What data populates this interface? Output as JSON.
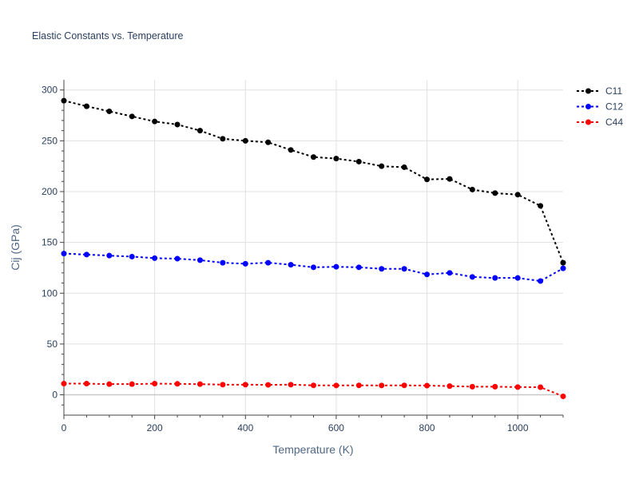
{
  "chart_data": {
    "type": "line",
    "title": "Elastic Constants vs. Temperature",
    "xlabel": "Temperature (K)",
    "ylabel": "Cij (GPa)",
    "xlim": [
      0,
      1100
    ],
    "ylim": [
      -20,
      310
    ],
    "x_ticks": [
      0,
      200,
      400,
      600,
      800,
      1000
    ],
    "y_ticks": [
      0,
      50,
      100,
      150,
      200,
      250,
      300
    ],
    "grid": true,
    "legend_position": "top-right",
    "x": [
      0,
      50,
      100,
      150,
      200,
      250,
      300,
      350,
      400,
      450,
      500,
      550,
      600,
      650,
      700,
      750,
      800,
      850,
      900,
      950,
      1000,
      1050,
      1100
    ],
    "series": [
      {
        "name": "C11",
        "color": "#000000",
        "values": [
          289.5,
          284,
          279,
          274,
          269,
          266,
          260,
          252,
          250,
          248.5,
          241,
          234,
          232.5,
          229.5,
          225,
          224,
          212,
          212.5,
          202,
          198.5,
          197,
          186,
          130
        ]
      },
      {
        "name": "C12",
        "color": "#0000ff",
        "values": [
          139,
          138,
          137,
          136,
          134.5,
          134,
          132.5,
          130,
          129,
          130,
          128,
          125.5,
          126,
          125.5,
          124,
          124,
          118.5,
          120,
          116,
          115,
          115,
          112,
          124.5
        ]
      },
      {
        "name": "C44",
        "color": "#ff0000",
        "values": [
          11,
          11,
          10.5,
          10.5,
          11,
          10.8,
          10.5,
          10,
          10,
          9.8,
          10,
          9.3,
          9.2,
          9.3,
          9.2,
          9.3,
          9.1,
          8.6,
          8,
          8,
          7.6,
          7.5,
          -1.5
        ]
      }
    ]
  }
}
